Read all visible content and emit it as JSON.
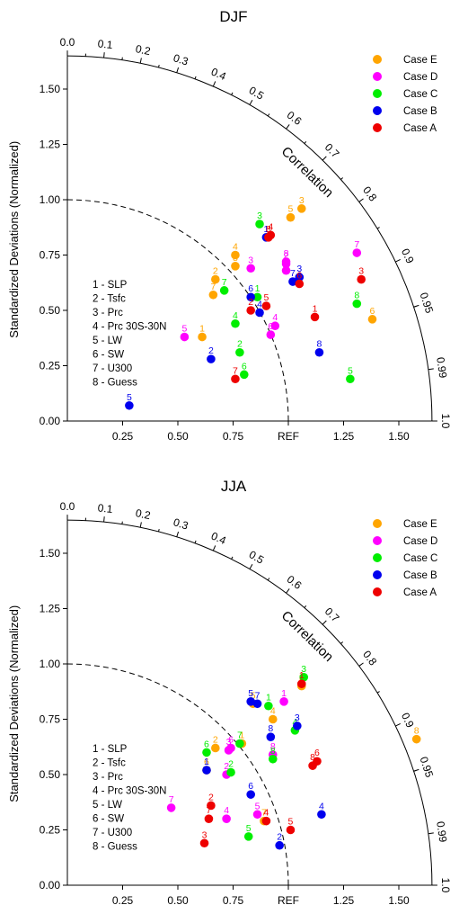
{
  "chart_data": [
    {
      "type": "scatter",
      "subtype": "taylor-diagram",
      "title": "DJF",
      "ylabel": "Standardized Deviations (Normalized)",
      "correlation_label": "Correlation",
      "ref_label": "REF",
      "std_range": [
        0,
        1.65
      ],
      "x_ticks": [
        "0.25",
        "0.50",
        "0.75",
        "1.25",
        "1.50"
      ],
      "y_ticks": [
        "0.00",
        "0.25",
        "0.50",
        "0.75",
        "1.00",
        "1.25",
        "1.50"
      ],
      "corr_ticks": [
        "0.0",
        "0.1",
        "0.2",
        "0.3",
        "0.4",
        "0.5",
        "0.6",
        "0.7",
        "0.8",
        "0.9",
        "0.95",
        "0.99",
        "1.0"
      ],
      "ref_arc": 1.0,
      "variable_key": [
        "1 - SLP",
        "2 - Tsfc",
        "3 - Prc",
        "4 - Prc 30S-30N",
        "5 - LW",
        "6 - SW",
        "7 - U300",
        "8 - Guess"
      ],
      "legend_position": "top-right",
      "colors": {
        "Case E": "#ffa500",
        "Case D": "#ff00ff",
        "Case C": "#00ee00",
        "Case B": "#0000ee",
        "Case A": "#ee0000"
      },
      "series": [
        {
          "name": "Case E",
          "points": [
            {
              "label": "1",
              "x": 0.61,
              "y": 0.38
            },
            {
              "label": "2",
              "x": 0.67,
              "y": 0.64
            },
            {
              "label": "3",
              "x": 1.06,
              "y": 0.96
            },
            {
              "label": "4",
              "x": 0.76,
              "y": 0.75
            },
            {
              "label": "5",
              "x": 1.01,
              "y": 0.92
            },
            {
              "label": "6",
              "x": 1.38,
              "y": 0.46
            },
            {
              "label": "7",
              "x": 0.66,
              "y": 0.57
            },
            {
              "label": "8",
              "x": 0.76,
              "y": 0.7
            }
          ]
        },
        {
          "name": "Case D",
          "points": [
            {
              "label": "1",
              "x": 0.99,
              "y": 0.68
            },
            {
              "label": "2",
              "x": 0.99,
              "y": 0.71
            },
            {
              "label": "3",
              "x": 0.83,
              "y": 0.69
            },
            {
              "label": "4",
              "x": 0.94,
              "y": 0.43
            },
            {
              "label": "5",
              "x": 0.53,
              "y": 0.38
            },
            {
              "label": "6",
              "x": 0.92,
              "y": 0.39
            },
            {
              "label": "7",
              "x": 1.31,
              "y": 0.76
            },
            {
              "label": "8",
              "x": 0.99,
              "y": 0.72
            }
          ]
        },
        {
          "name": "Case C",
          "points": [
            {
              "label": "1",
              "x": 0.86,
              "y": 0.56
            },
            {
              "label": "2",
              "x": 0.78,
              "y": 0.31
            },
            {
              "label": "3",
              "x": 0.87,
              "y": 0.89
            },
            {
              "label": "4",
              "x": 0.76,
              "y": 0.44
            },
            {
              "label": "5",
              "x": 1.28,
              "y": 0.19
            },
            {
              "label": "6",
              "x": 0.8,
              "y": 0.21
            },
            {
              "label": "7",
              "x": 0.71,
              "y": 0.59
            },
            {
              "label": "8",
              "x": 1.31,
              "y": 0.53
            }
          ]
        },
        {
          "name": "Case B",
          "points": [
            {
              "label": "1",
              "x": 0.9,
              "y": 0.83
            },
            {
              "label": "2",
              "x": 0.65,
              "y": 0.28
            },
            {
              "label": "3",
              "x": 1.05,
              "y": 0.65
            },
            {
              "label": "4",
              "x": 0.87,
              "y": 0.49
            },
            {
              "label": "5",
              "x": 0.28,
              "y": 0.07
            },
            {
              "label": "6",
              "x": 0.83,
              "y": 0.56
            },
            {
              "label": "7",
              "x": 1.02,
              "y": 0.63
            },
            {
              "label": "8",
              "x": 1.14,
              "y": 0.31
            }
          ]
        },
        {
          "name": "Case A",
          "points": [
            {
              "label": "1",
              "x": 1.12,
              "y": 0.47
            },
            {
              "label": "2",
              "x": 0.83,
              "y": 0.5
            },
            {
              "label": "3",
              "x": 1.33,
              "y": 0.64
            },
            {
              "label": "4",
              "x": 0.92,
              "y": 0.84
            },
            {
              "label": "5",
              "x": 0.9,
              "y": 0.52
            },
            {
              "label": "6",
              "x": 1.05,
              "y": 0.62
            },
            {
              "label": "7",
              "x": 0.76,
              "y": 0.19
            },
            {
              "label": "8",
              "x": 0.91,
              "y": 0.83
            }
          ]
        }
      ]
    },
    {
      "type": "scatter",
      "subtype": "taylor-diagram",
      "title": "JJA",
      "ylabel": "Standardized Deviations (Normalized)",
      "correlation_label": "Correlation",
      "ref_label": "REF",
      "std_range": [
        0,
        1.65
      ],
      "x_ticks": [
        "0.25",
        "0.50",
        "0.75",
        "1.25",
        "1.50"
      ],
      "y_ticks": [
        "0.00",
        "0.25",
        "0.50",
        "0.75",
        "1.00",
        "1.25",
        "1.50"
      ],
      "corr_ticks": [
        "0.0",
        "0.1",
        "0.2",
        "0.3",
        "0.4",
        "0.5",
        "0.6",
        "0.7",
        "0.8",
        "0.9",
        "0.95",
        "0.99",
        "1.0"
      ],
      "ref_arc": 1.0,
      "variable_key": [
        "1 - SLP",
        "2 - Tsfc",
        "3 - Prc",
        "4 - Prc 30S-30N",
        "5 - LW",
        "6 - SW",
        "7 - U300",
        "8 - Guess"
      ],
      "legend_position": "top-right",
      "colors": {
        "Case E": "#ffa500",
        "Case D": "#ff00ff",
        "Case C": "#00ee00",
        "Case B": "#0000ee",
        "Case A": "#ee0000"
      },
      "series": [
        {
          "name": "Case E",
          "points": [
            {
              "label": "1",
              "x": 0.79,
              "y": 0.64
            },
            {
              "label": "2",
              "x": 0.67,
              "y": 0.62
            },
            {
              "label": "3",
              "x": 1.06,
              "y": 0.9
            },
            {
              "label": "4",
              "x": 0.93,
              "y": 0.75
            },
            {
              "label": "5",
              "x": 0.84,
              "y": 0.82
            },
            {
              "label": "6",
              "x": 0.63,
              "y": 0.52
            },
            {
              "label": "7",
              "x": 0.89,
              "y": 0.29
            },
            {
              "label": "8",
              "x": 1.58,
              "y": 0.66
            }
          ]
        },
        {
          "name": "Case D",
          "points": [
            {
              "label": "1",
              "x": 0.98,
              "y": 0.83
            },
            {
              "label": "2",
              "x": 0.72,
              "y": 0.5
            },
            {
              "label": "3",
              "x": 0.73,
              "y": 0.61
            },
            {
              "label": "4",
              "x": 0.72,
              "y": 0.3
            },
            {
              "label": "5",
              "x": 0.86,
              "y": 0.32
            },
            {
              "label": "6",
              "x": 0.74,
              "y": 0.62
            },
            {
              "label": "7",
              "x": 0.47,
              "y": 0.35
            },
            {
              "label": "8",
              "x": 0.93,
              "y": 0.59
            }
          ]
        },
        {
          "name": "Case C",
          "points": [
            {
              "label": "1",
              "x": 0.91,
              "y": 0.81
            },
            {
              "label": "2",
              "x": 0.74,
              "y": 0.51
            },
            {
              "label": "3",
              "x": 1.07,
              "y": 0.94
            },
            {
              "label": "4",
              "x": 1.03,
              "y": 0.7
            },
            {
              "label": "5",
              "x": 0.82,
              "y": 0.22
            },
            {
              "label": "6",
              "x": 0.63,
              "y": 0.6
            },
            {
              "label": "7",
              "x": 0.78,
              "y": 0.64
            },
            {
              "label": "8",
              "x": 0.93,
              "y": 0.57
            }
          ]
        },
        {
          "name": "Case B",
          "points": [
            {
              "label": "1",
              "x": 0.63,
              "y": 0.52
            },
            {
              "label": "2",
              "x": 0.96,
              "y": 0.18
            },
            {
              "label": "3",
              "x": 1.04,
              "y": 0.72
            },
            {
              "label": "4",
              "x": 1.15,
              "y": 0.32
            },
            {
              "label": "5",
              "x": 0.83,
              "y": 0.83
            },
            {
              "label": "6",
              "x": 0.83,
              "y": 0.41
            },
            {
              "label": "7",
              "x": 0.86,
              "y": 0.82
            },
            {
              "label": "8",
              "x": 0.92,
              "y": 0.67
            }
          ]
        },
        {
          "name": "Case A",
          "points": [
            {
              "label": "1",
              "x": 1.06,
              "y": 0.91
            },
            {
              "label": "2",
              "x": 0.65,
              "y": 0.36
            },
            {
              "label": "3",
              "x": 0.62,
              "y": 0.19
            },
            {
              "label": "4",
              "x": 0.9,
              "y": 0.29
            },
            {
              "label": "5",
              "x": 1.01,
              "y": 0.25
            },
            {
              "label": "6",
              "x": 1.13,
              "y": 0.56
            },
            {
              "label": "7",
              "x": 0.64,
              "y": 0.3
            },
            {
              "label": "8",
              "x": 1.11,
              "y": 0.54
            }
          ]
        }
      ]
    }
  ]
}
